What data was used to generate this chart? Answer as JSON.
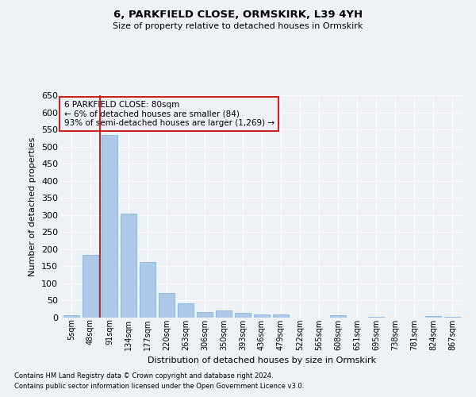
{
  "title": "6, PARKFIELD CLOSE, ORMSKIRK, L39 4YH",
  "subtitle": "Size of property relative to detached houses in Ormskirk",
  "xlabel": "Distribution of detached houses by size in Ormskirk",
  "ylabel": "Number of detached properties",
  "footnote1": "Contains HM Land Registry data © Crown copyright and database right 2024.",
  "footnote2": "Contains public sector information licensed under the Open Government Licence v3.0.",
  "annotation_line1": "6 PARKFIELD CLOSE: 80sqm",
  "annotation_line2": "← 6% of detached houses are smaller (84)",
  "annotation_line3": "93% of semi-detached houses are larger (1,269) →",
  "bar_data": [
    {
      "label": "5sqm",
      "value": 8
    },
    {
      "label": "48sqm",
      "value": 183
    },
    {
      "label": "91sqm",
      "value": 533
    },
    {
      "label": "134sqm",
      "value": 304
    },
    {
      "label": "177sqm",
      "value": 163
    },
    {
      "label": "220sqm",
      "value": 72
    },
    {
      "label": "263sqm",
      "value": 42
    },
    {
      "label": "306sqm",
      "value": 17
    },
    {
      "label": "350sqm",
      "value": 20
    },
    {
      "label": "393sqm",
      "value": 13
    },
    {
      "label": "436sqm",
      "value": 10
    },
    {
      "label": "479sqm",
      "value": 10
    },
    {
      "label": "522sqm",
      "value": 1
    },
    {
      "label": "565sqm",
      "value": 0
    },
    {
      "label": "608sqm",
      "value": 6
    },
    {
      "label": "651sqm",
      "value": 0
    },
    {
      "label": "695sqm",
      "value": 3
    },
    {
      "label": "738sqm",
      "value": 0
    },
    {
      "label": "781sqm",
      "value": 0
    },
    {
      "label": "824sqm",
      "value": 5
    },
    {
      "label": "867sqm",
      "value": 3
    }
  ],
  "vline_x": 1.5,
  "bar_color": "#aec8e8",
  "bar_edge_color": "#7bafd4",
  "vline_color": "#cc2222",
  "annotation_box_color": "#cc2222",
  "bg_color": "#eef2f7",
  "grid_color": "#ffffff",
  "ylim": [
    0,
    650
  ],
  "title_fontsize": 9.5,
  "subtitle_fontsize": 8,
  "tick_fontsize": 7,
  "ylabel_fontsize": 8,
  "xlabel_fontsize": 8,
  "ann_fontsize": 7.5,
  "footnote_fontsize": 6
}
